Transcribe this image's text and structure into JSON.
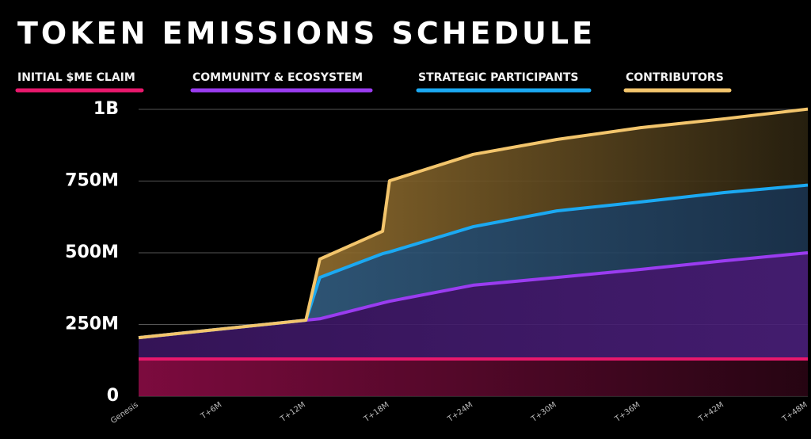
{
  "chart_data": {
    "type": "stacked-area",
    "title": "TOKEN EMISSIONS SCHEDULE",
    "x": [
      0,
      12,
      13,
      17.5,
      18,
      24,
      30,
      36,
      42,
      48
    ],
    "series": [
      {
        "name": "INITIAL $ME CLAIM",
        "color": "#e8186c",
        "values": [
          130000000,
          130000000,
          130000000,
          130000000,
          130000000,
          130000000,
          130000000,
          130000000,
          130000000,
          130000000
        ]
      },
      {
        "name": "COMMUNITY & ECOSYSTEM",
        "color": "#9a3cf0",
        "values": [
          74000000,
          135000000,
          140000000,
          195000000,
          201000000,
          257000000,
          284000000,
          312000000,
          342000000,
          370000000
        ]
      },
      {
        "name": "STRATEGIC PARTICIPANTS",
        "color": "#1ba9f2",
        "values": [
          0,
          0,
          144000000,
          172000000,
          172000000,
          204000000,
          232000000,
          235000000,
          238000000,
          236000000
        ]
      },
      {
        "name": "CONTRIBUTORS",
        "color": "#f3c56c",
        "values": [
          0,
          0,
          64000000,
          78000000,
          248000000,
          252000000,
          249000000,
          259000000,
          257000000,
          265000000
        ]
      }
    ],
    "xlim": [
      0,
      48
    ],
    "xticks": [
      {
        "value": 0,
        "label": "Genesis"
      },
      {
        "value": 6,
        "label": "T+6M"
      },
      {
        "value": 12,
        "label": "T+12M"
      },
      {
        "value": 18,
        "label": "T+18M"
      },
      {
        "value": 24,
        "label": "T+24M"
      },
      {
        "value": 30,
        "label": "T+30M"
      },
      {
        "value": 36,
        "label": "T+36M"
      },
      {
        "value": 42,
        "label": "T+42M"
      },
      {
        "value": 48,
        "label": "T+48M"
      }
    ],
    "ylim": [
      0,
      1000000000
    ],
    "yticks": [
      0,
      {
        "value": 250000000,
        "label": "250M"
      },
      {
        "value": 500000000,
        "label": "500M"
      },
      {
        "value": 750000000,
        "label": "750M"
      },
      {
        "value": 1000000000,
        "label": "1B"
      }
    ],
    "grid": true
  }
}
